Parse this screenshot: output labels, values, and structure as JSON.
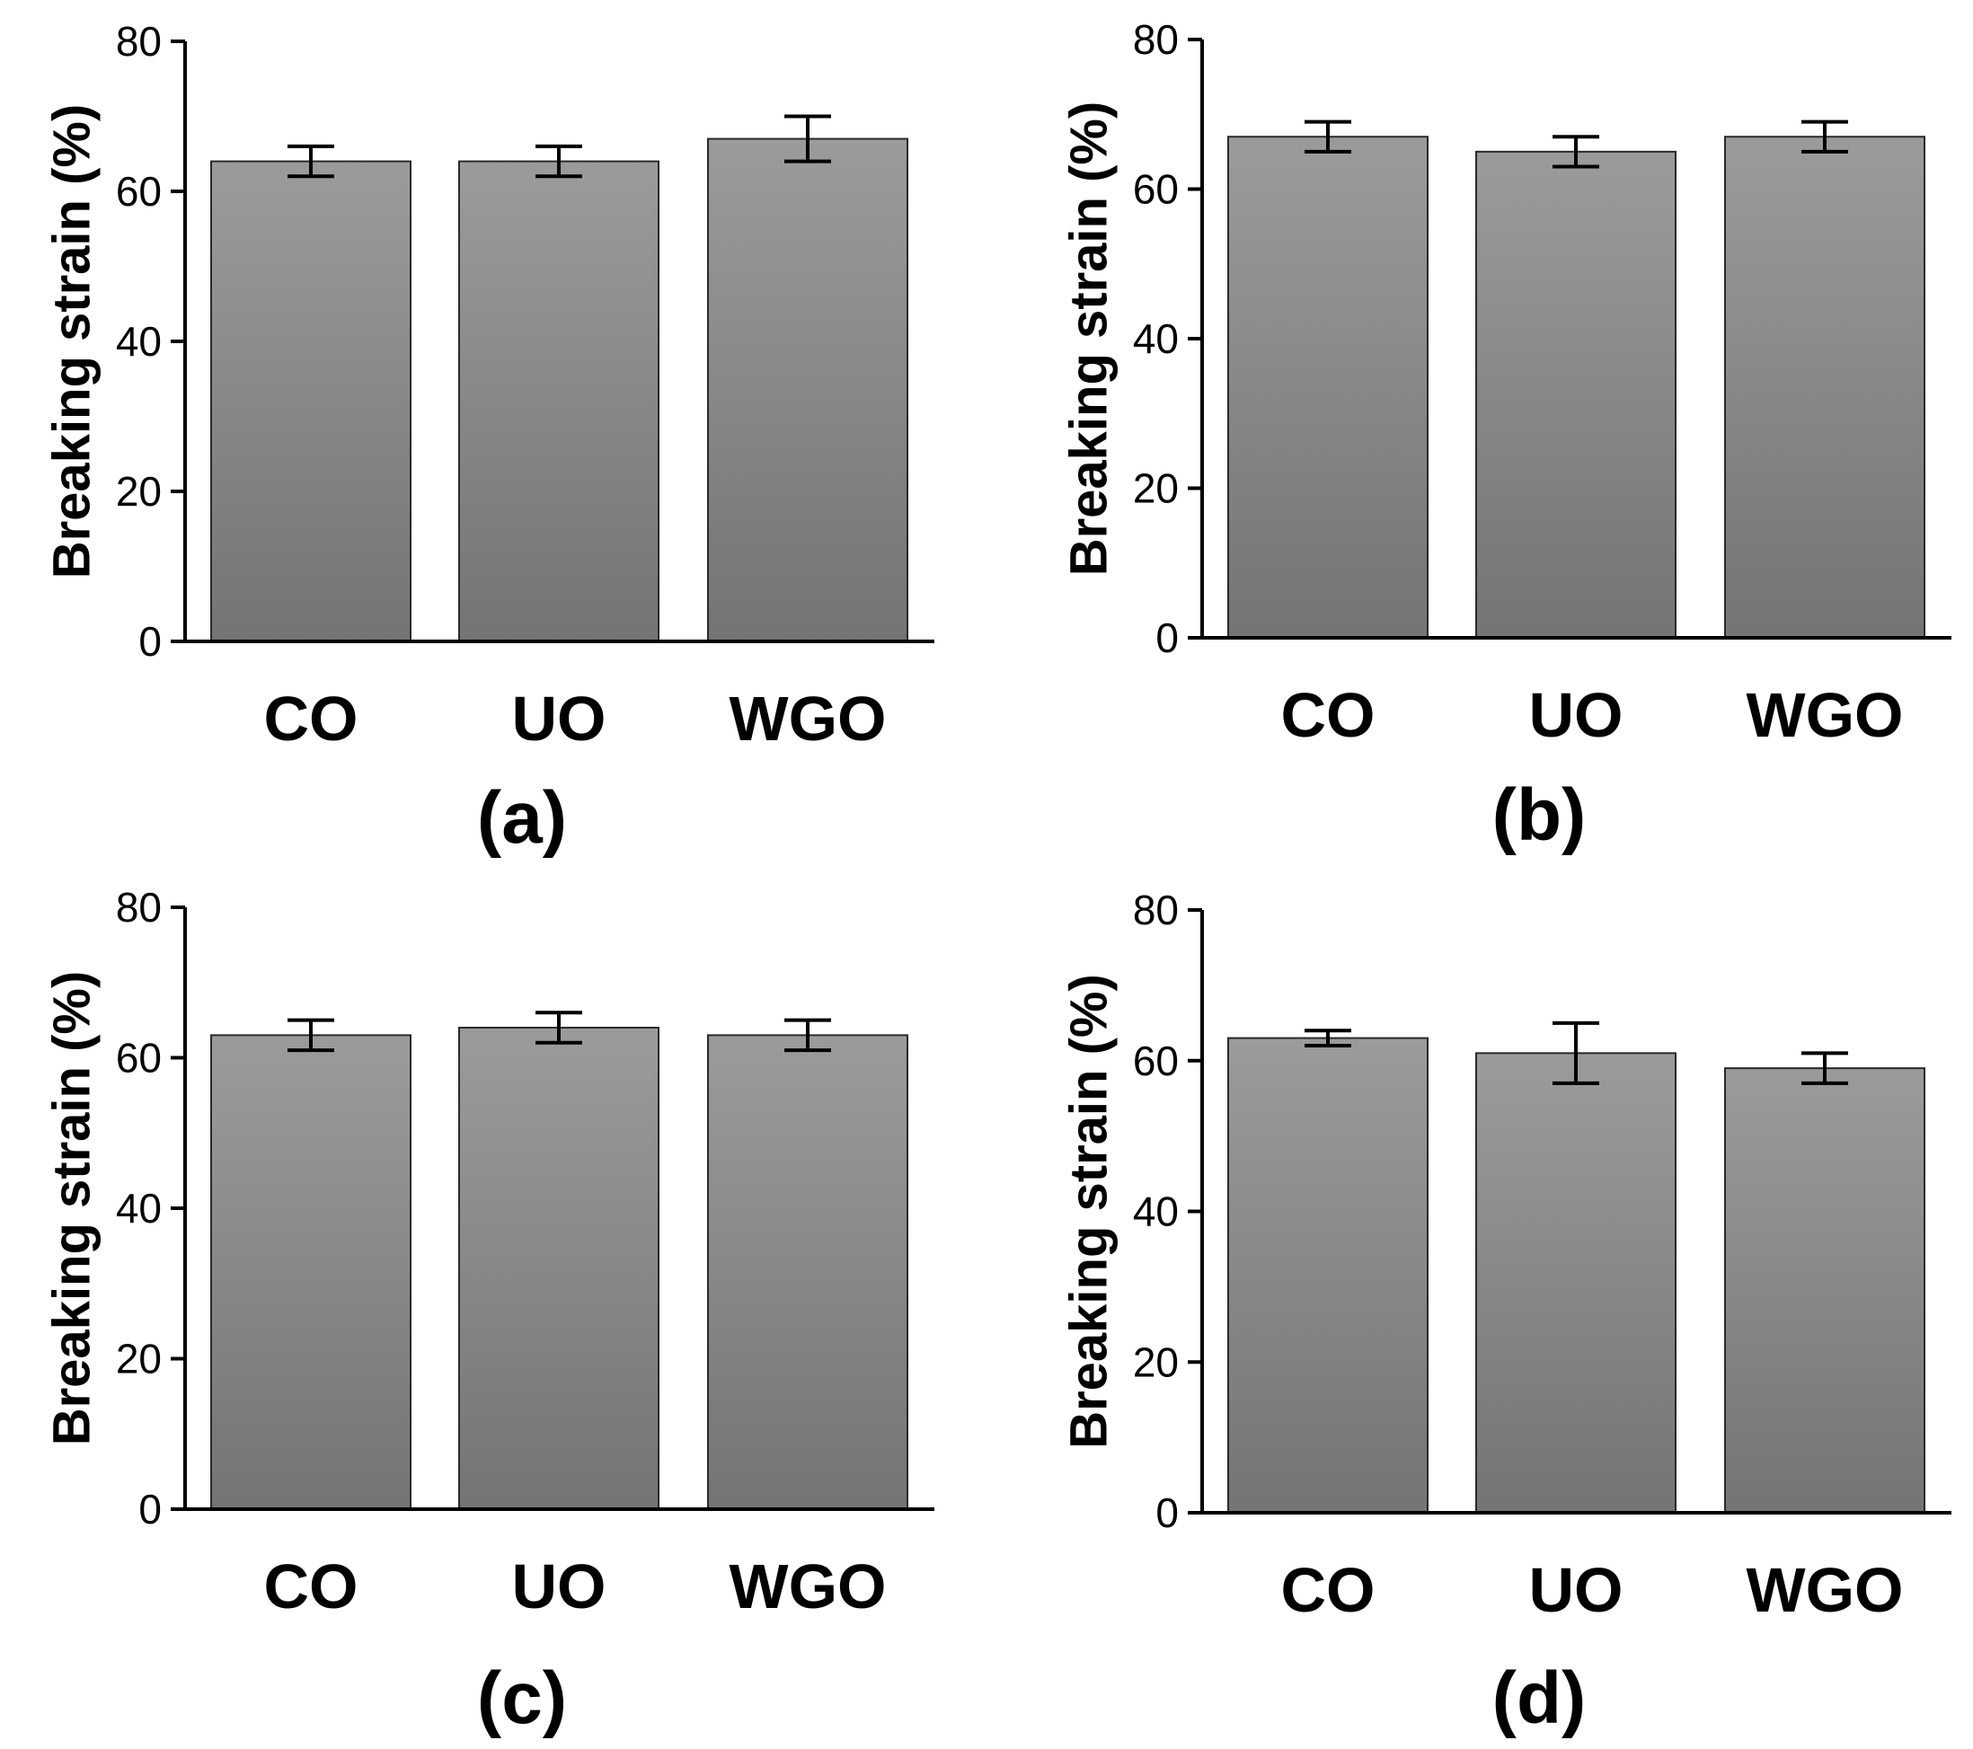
{
  "chart_data": [
    {
      "type": "bar",
      "panel_label": "(a)",
      "ylabel": "Breaking strain (%)",
      "xlabel": "",
      "ylim": [
        0,
        80
      ],
      "yticks": [
        "0",
        "20",
        "40",
        "60",
        "80"
      ],
      "categories": [
        "CO",
        "UO",
        "WGO"
      ],
      "values": [
        64,
        64,
        67
      ],
      "errors": [
        2,
        2,
        3
      ],
      "bar_color": "#8c8c8c"
    },
    {
      "type": "bar",
      "panel_label": "(b)",
      "ylabel": "Breaking strain (%)",
      "xlabel": "",
      "ylim": [
        0,
        80
      ],
      "yticks": [
        "0",
        "20",
        "40",
        "60",
        "80"
      ],
      "categories": [
        "CO",
        "UO",
        "WGO"
      ],
      "values": [
        67,
        65,
        67
      ],
      "errors": [
        2,
        2,
        2
      ],
      "bar_color": "#8c8c8c"
    },
    {
      "type": "bar",
      "panel_label": "(c)",
      "ylabel": "Breaking strain (%)",
      "xlabel": "",
      "ylim": [
        0,
        80
      ],
      "yticks": [
        "0",
        "20",
        "40",
        "60",
        "80"
      ],
      "categories": [
        "CO",
        "UO",
        "WGO"
      ],
      "values": [
        63,
        64,
        63
      ],
      "errors": [
        2,
        2,
        2
      ],
      "bar_color": "#8c8c8c"
    },
    {
      "type": "bar",
      "panel_label": "(d)",
      "ylabel": "Breaking strain (%)",
      "xlabel": "",
      "ylim": [
        0,
        80
      ],
      "yticks": [
        "0",
        "20",
        "40",
        "60",
        "80"
      ],
      "categories": [
        "CO",
        "UO",
        "WGO"
      ],
      "values": [
        63,
        61,
        59
      ],
      "errors": [
        1,
        4,
        2
      ],
      "bar_color": "#8c8c8c"
    }
  ]
}
